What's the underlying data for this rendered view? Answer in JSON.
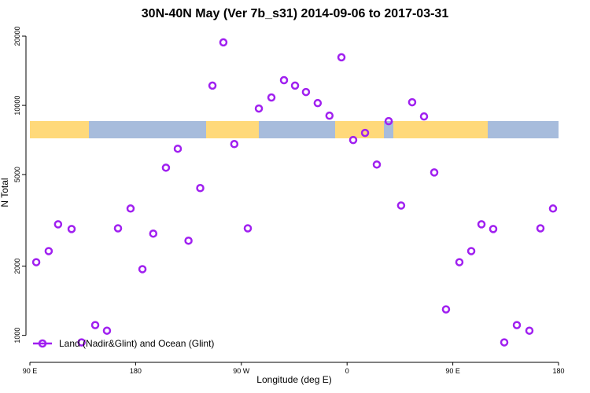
{
  "chart_data": {
    "type": "scatter",
    "title": "30N-40N May (Ver 7b_s31)   2014-09-06 to 2017-03-31",
    "x_label": "Longitude (deg E)",
    "y_label": "N Total",
    "x": [
      95.4,
      106,
      114,
      125.5,
      134,
      145.6,
      155.6,
      165,
      175.7,
      185.8,
      195,
      205.8,
      215.9,
      225,
      235,
      245.4,
      254.7,
      264,
      275.5,
      284.9,
      295.6,
      306.3,
      315.7,
      325,
      335,
      345,
      355.2,
      365.2,
      375.3,
      385.3,
      395.4,
      406,
      415.4,
      425.5,
      434.2,
      444.2,
      455.6,
      465.7,
      474.4,
      484.4,
      493.8,
      504.5,
      515.2,
      524.6,
      535.3
    ],
    "series": [
      {
        "name": "Land (Nadir&Glint) and Ocean (Glint)",
        "color": "#a020f0",
        "values": [
          2080,
          2325,
          3040,
          2900,
          932,
          1108,
          1048,
          2920,
          3560,
          1940,
          2770,
          5360,
          6480,
          2580,
          4370,
          12190,
          18790,
          6790,
          2920,
          9690,
          10820,
          12870,
          12190,
          11430,
          10230,
          9020,
          16180,
          7070,
          7590,
          5530,
          8540,
          3670,
          10320,
          8950,
          5110,
          1297,
          2080,
          2325,
          3040,
          2900,
          932,
          1108,
          1048,
          2920,
          3560
        ]
      }
    ],
    "xlim": [
      90,
      540
    ],
    "xticks": [
      {
        "value": 90,
        "label": "90 E"
      },
      {
        "value": 180,
        "label": "180"
      },
      {
        "value": 270,
        "label": "90 W"
      },
      {
        "value": 360,
        "label": "0"
      },
      {
        "value": 450,
        "label": "90 E"
      },
      {
        "value": 540,
        "label": "180"
      }
    ],
    "ylim": [
      800,
      21300
    ],
    "yticks": [
      1000,
      2000,
      5000,
      10000,
      20000
    ],
    "log_y": true,
    "legend": "lower left"
  }
}
